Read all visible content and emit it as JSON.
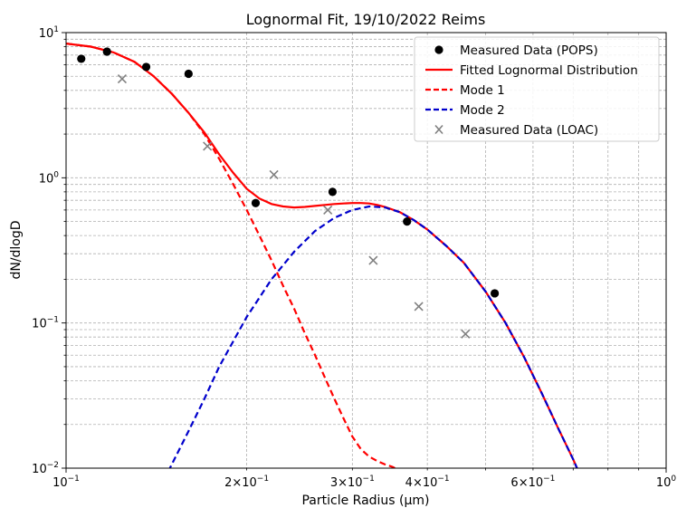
{
  "chart_data": {
    "type": "scatter",
    "title": "Lognormal Fit, 19/10/2022 Reims",
    "xlabel": "Particle Radius (µm)",
    "ylabel": "dN/dlogD",
    "x_scale": "log",
    "y_scale": "log",
    "xlim": [
      0.1,
      1.0
    ],
    "ylim": [
      0.01,
      10
    ],
    "grid": true,
    "legend_position": "top-right",
    "x_major_ticks": [
      {
        "value": 0.1,
        "base": "10",
        "exp": "−1"
      },
      {
        "value": 1.0,
        "base": "10",
        "exp": "0"
      }
    ],
    "x_minor_labels": [
      {
        "value": 0.2,
        "mantissa": "2",
        "exp": "−1"
      },
      {
        "value": 0.3,
        "mantissa": "3",
        "exp": "−1"
      },
      {
        "value": 0.4,
        "mantissa": "4",
        "exp": "−1"
      },
      {
        "value": 0.6,
        "mantissa": "6",
        "exp": "−1"
      }
    ],
    "y_major_ticks": [
      {
        "value": 0.01,
        "base": "10",
        "exp": "−2"
      },
      {
        "value": 0.1,
        "base": "10",
        "exp": "−1"
      },
      {
        "value": 1,
        "base": "10",
        "exp": "0"
      },
      {
        "value": 10,
        "base": "10",
        "exp": "1"
      }
    ],
    "series": [
      {
        "name": "Measured Data (POPS)",
        "kind": "scatter",
        "marker": "circle",
        "color": "#000000",
        "x": [
          0.106,
          0.117,
          0.136,
          0.16,
          0.207,
          0.278,
          0.37,
          0.518
        ],
        "y": [
          6.6,
          7.4,
          5.8,
          5.2,
          0.67,
          0.8,
          0.5,
          0.16
        ]
      },
      {
        "name": "Fitted Lognormal Distribution",
        "kind": "line",
        "style": "solid",
        "color": "#ff0000",
        "x": [
          0.1,
          0.11,
          0.12,
          0.13,
          0.14,
          0.15,
          0.16,
          0.17,
          0.18,
          0.19,
          0.2,
          0.21,
          0.22,
          0.23,
          0.24,
          0.25,
          0.26,
          0.27,
          0.28,
          0.29,
          0.3,
          0.31,
          0.32,
          0.33,
          0.34,
          0.36,
          0.38,
          0.4,
          0.43,
          0.46,
          0.5,
          0.54,
          0.58,
          0.62,
          0.66,
          0.7,
          0.72
        ],
        "y": [
          8.4,
          8.0,
          7.3,
          6.3,
          5.0,
          3.8,
          2.8,
          2.05,
          1.45,
          1.08,
          0.84,
          0.72,
          0.66,
          0.635,
          0.625,
          0.63,
          0.64,
          0.65,
          0.66,
          0.665,
          0.67,
          0.67,
          0.665,
          0.65,
          0.63,
          0.58,
          0.51,
          0.44,
          0.34,
          0.26,
          0.165,
          0.1,
          0.058,
          0.033,
          0.019,
          0.0115,
          0.0088
        ]
      },
      {
        "name": "Mode 1",
        "kind": "line",
        "style": "dashed",
        "color": "#ff0000",
        "x": [
          0.1,
          0.11,
          0.12,
          0.13,
          0.14,
          0.15,
          0.16,
          0.17,
          0.18,
          0.19,
          0.2,
          0.21,
          0.22,
          0.23,
          0.24,
          0.25,
          0.26,
          0.27,
          0.28,
          0.29,
          0.3,
          0.31,
          0.32,
          0.33,
          0.34,
          0.35,
          0.36
        ],
        "y": [
          8.4,
          8.0,
          7.3,
          6.3,
          5.0,
          3.8,
          2.8,
          2.0,
          1.35,
          0.9,
          0.6,
          0.4,
          0.27,
          0.18,
          0.125,
          0.085,
          0.06,
          0.042,
          0.03,
          0.022,
          0.0165,
          0.0135,
          0.012,
          0.0112,
          0.0106,
          0.0102,
          0.0096
        ]
      },
      {
        "name": "Mode 2",
        "kind": "line",
        "style": "dashed",
        "color": "#0000cc",
        "x": [
          0.148,
          0.16,
          0.17,
          0.18,
          0.2,
          0.22,
          0.24,
          0.26,
          0.28,
          0.3,
          0.32,
          0.34,
          0.36,
          0.38,
          0.4,
          0.43,
          0.46,
          0.5,
          0.54,
          0.58,
          0.62,
          0.66,
          0.7,
          0.72
        ],
        "y": [
          0.0095,
          0.018,
          0.03,
          0.05,
          0.11,
          0.2,
          0.31,
          0.43,
          0.53,
          0.6,
          0.635,
          0.625,
          0.58,
          0.51,
          0.44,
          0.34,
          0.26,
          0.165,
          0.1,
          0.058,
          0.033,
          0.019,
          0.0115,
          0.0088
        ]
      },
      {
        "name": "Measured Data (LOAC)",
        "kind": "scatter",
        "marker": "x",
        "color": "#808080",
        "x": [
          0.124,
          0.172,
          0.222,
          0.273,
          0.325,
          0.387,
          0.463
        ],
        "y": [
          4.8,
          1.65,
          1.05,
          0.6,
          0.27,
          0.13,
          0.084
        ]
      }
    ]
  }
}
